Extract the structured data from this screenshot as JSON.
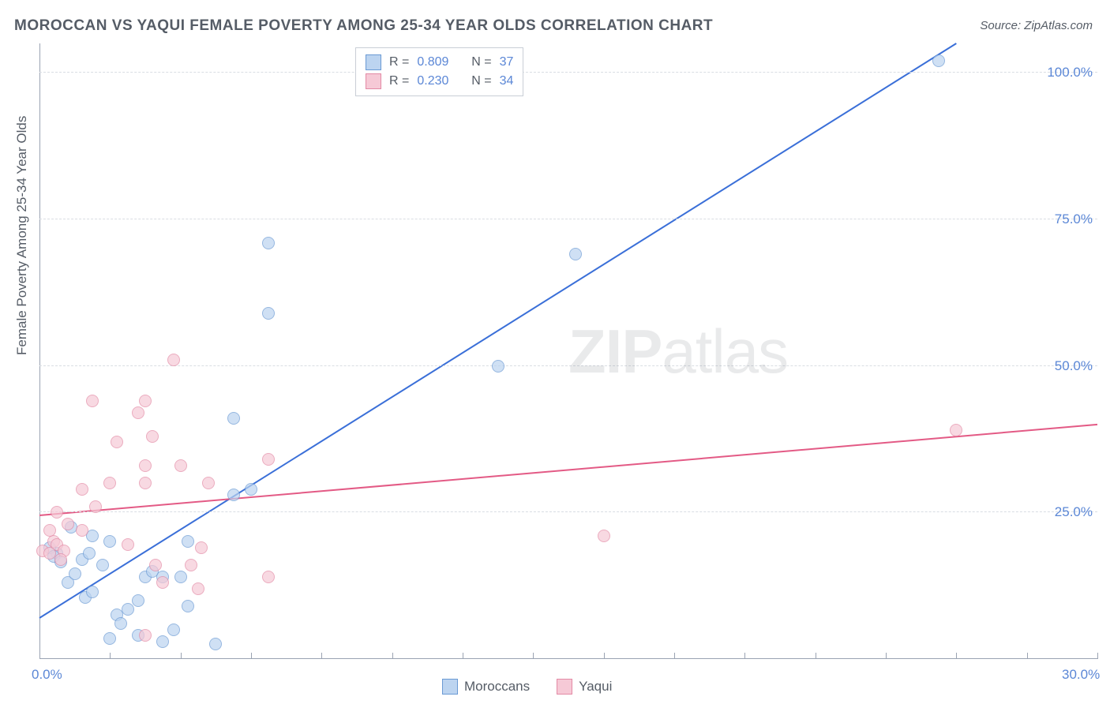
{
  "title": "MOROCCAN VS YAQUI FEMALE POVERTY AMONG 25-34 YEAR OLDS CORRELATION CHART",
  "source_label": "Source:",
  "source_name": "ZipAtlas.com",
  "ylabel": "Female Poverty Among 25-34 Year Olds",
  "watermark": "ZIPatlas",
  "chart": {
    "type": "scatter",
    "xlim": [
      0,
      30
    ],
    "ylim": [
      0,
      105
    ],
    "x_ticks": [
      0,
      2,
      4,
      6,
      8,
      10,
      12,
      14,
      16,
      18,
      20,
      22,
      24,
      26,
      28,
      30
    ],
    "x_tick_labels": {
      "0": "0.0%",
      "30": "30.0%"
    },
    "y_gridlines": [
      25,
      50,
      75,
      100
    ],
    "y_tick_labels": {
      "25": "25.0%",
      "50": "50.0%",
      "75": "75.0%",
      "100": "100.0%"
    },
    "grid_color": "#d9dde3",
    "axis_color": "#9aa3b2",
    "label_color": "#5b87d6",
    "text_color": "#555c66",
    "background_color": "#ffffff",
    "marker_radius": 8,
    "line_width": 2
  },
  "series": [
    {
      "name": "Moroccans",
      "fill": "#bcd4f0",
      "stroke": "#6a9ad4",
      "line": "#3a6fd8",
      "R": "0.809",
      "N": "37",
      "trend": {
        "x1": 0,
        "y1": 7,
        "x2": 26,
        "y2": 105
      },
      "points": [
        [
          25.5,
          102
        ],
        [
          15.2,
          69
        ],
        [
          6.5,
          71
        ],
        [
          6.5,
          59
        ],
        [
          13,
          50
        ],
        [
          5.5,
          41
        ],
        [
          5.5,
          28
        ],
        [
          6,
          29
        ],
        [
          3,
          14
        ],
        [
          3.2,
          15
        ],
        [
          3.5,
          14
        ],
        [
          4,
          14
        ],
        [
          2.2,
          7.5
        ],
        [
          2.5,
          8.5
        ],
        [
          4.2,
          9
        ],
        [
          4.2,
          20
        ],
        [
          2,
          20
        ],
        [
          1.2,
          17
        ],
        [
          1.4,
          18
        ],
        [
          1.8,
          16
        ],
        [
          1.5,
          21
        ],
        [
          0.9,
          22.5
        ],
        [
          0.5,
          18
        ],
        [
          0.3,
          19
        ],
        [
          0.4,
          17.5
        ],
        [
          0.6,
          16.5
        ],
        [
          0.8,
          13
        ],
        [
          1,
          14.5
        ],
        [
          2,
          3.5
        ],
        [
          2.3,
          6
        ],
        [
          2.8,
          4
        ],
        [
          3.5,
          3
        ],
        [
          3.8,
          5
        ],
        [
          5,
          2.5
        ],
        [
          1.3,
          10.5
        ],
        [
          1.5,
          11.5
        ],
        [
          2.8,
          10
        ]
      ]
    },
    {
      "name": "Yaqui",
      "fill": "#f6c9d6",
      "stroke": "#e38aa5",
      "line": "#e35a85",
      "R": "0.230",
      "N": "34",
      "trend": {
        "x1": 0,
        "y1": 24.5,
        "x2": 30,
        "y2": 40
      },
      "points": [
        [
          26,
          39
        ],
        [
          16,
          21
        ],
        [
          3.8,
          51
        ],
        [
          1.5,
          44
        ],
        [
          3,
          44
        ],
        [
          2.8,
          42
        ],
        [
          2.2,
          37
        ],
        [
          3.2,
          38
        ],
        [
          3,
          33
        ],
        [
          4,
          33
        ],
        [
          6.5,
          34
        ],
        [
          2,
          30
        ],
        [
          3,
          30
        ],
        [
          4.8,
          30
        ],
        [
          1.2,
          29
        ],
        [
          1.6,
          26
        ],
        [
          0.5,
          25
        ],
        [
          0.8,
          23
        ],
        [
          0.4,
          20
        ],
        [
          0.3,
          22
        ],
        [
          0.5,
          19.5
        ],
        [
          0.7,
          18.5
        ],
        [
          1.2,
          22
        ],
        [
          2.5,
          19.5
        ],
        [
          3.3,
          16
        ],
        [
          4.3,
          16
        ],
        [
          3.5,
          13
        ],
        [
          4.5,
          12
        ],
        [
          4.6,
          19
        ],
        [
          6.5,
          14
        ],
        [
          0.1,
          18.5
        ],
        [
          0.3,
          18
        ],
        [
          0.6,
          17
        ],
        [
          3,
          4
        ]
      ]
    }
  ],
  "r_legend": {
    "r_label": "R =",
    "n_label": "N ="
  },
  "bottom_legend": {
    "items": [
      "Moroccans",
      "Yaqui"
    ]
  }
}
